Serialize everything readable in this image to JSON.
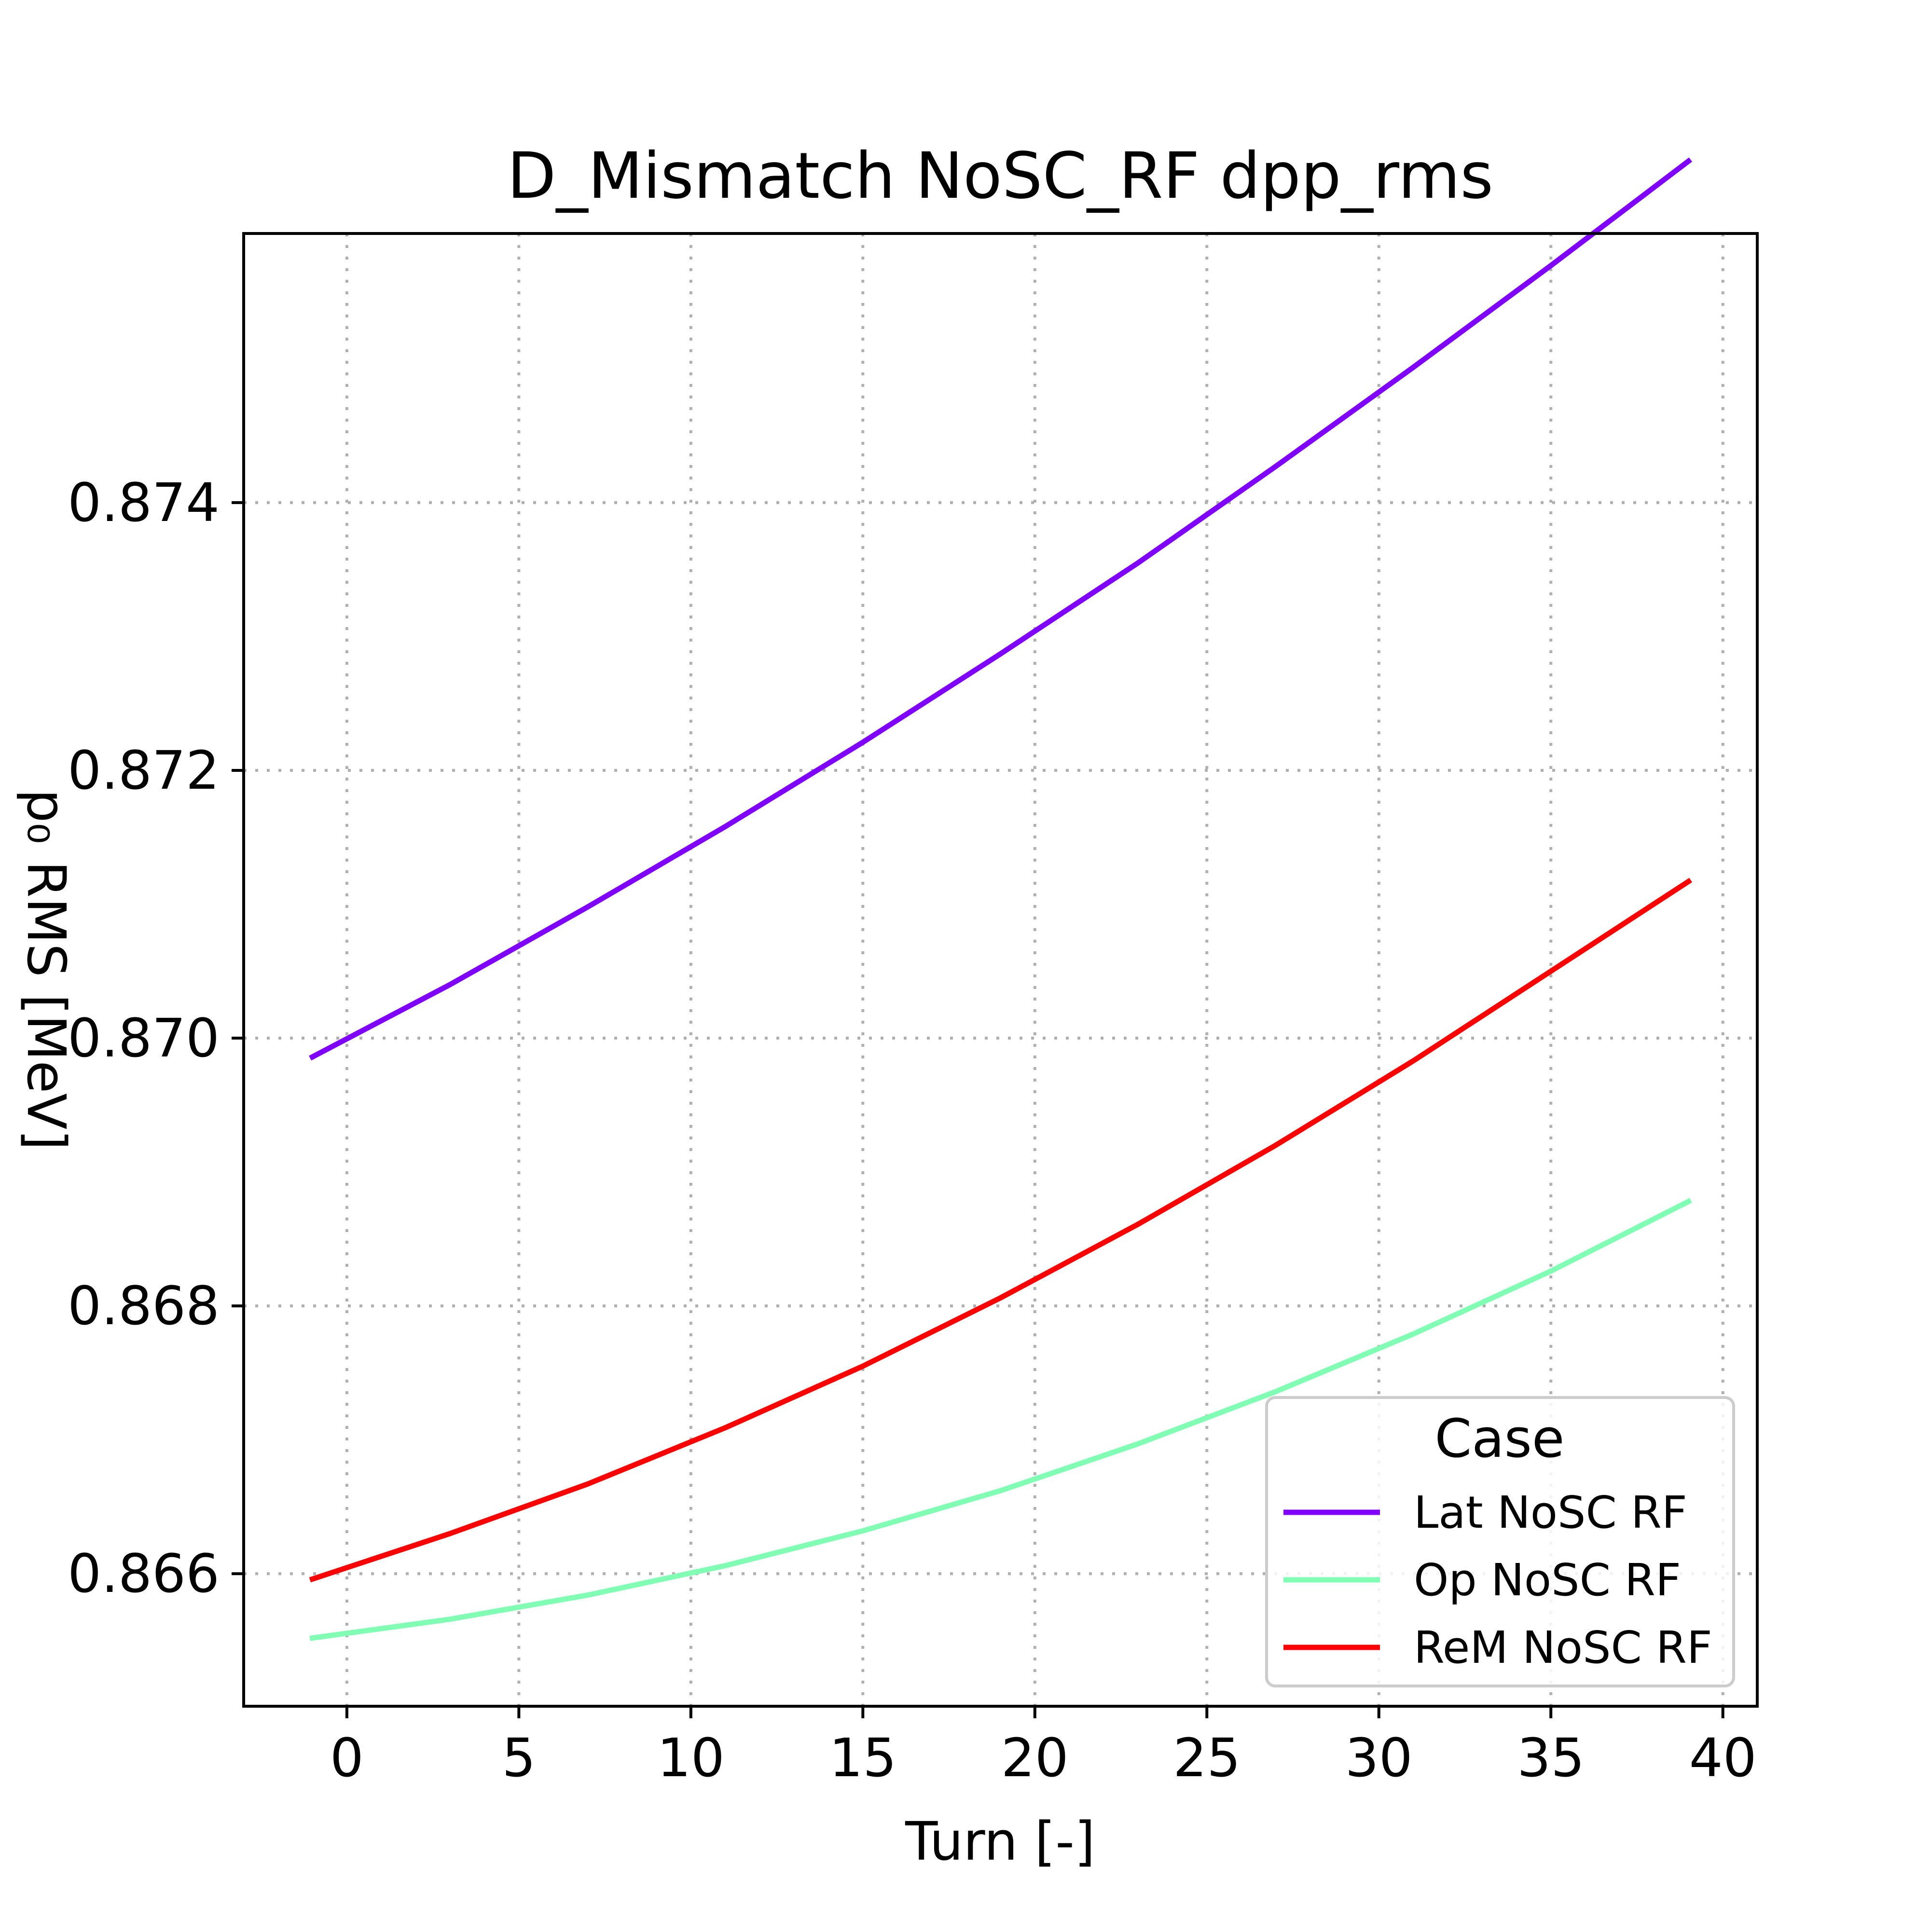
{
  "chart_data": {
    "type": "line",
    "title": "D_Mismatch NoSC_RF dpp_rms",
    "xlabel": "Turn [-]",
    "ylabel": "p₀ RMS [MeV]",
    "xlim": [
      -3,
      41
    ],
    "ylim": [
      0.86501,
      0.87601
    ],
    "xticks": [
      0,
      5,
      10,
      15,
      20,
      25,
      30,
      35,
      40
    ],
    "yticks": [
      0.866,
      0.868,
      0.87,
      0.872,
      0.874
    ],
    "ytick_labels": [
      "0.866",
      "0.868",
      "0.870",
      "0.872",
      "0.874"
    ],
    "grid": true,
    "grid_style": "dotted",
    "legend": {
      "title": "Case",
      "position": "lower right"
    },
    "x": [
      -1,
      3,
      7,
      11,
      15,
      19,
      23,
      27,
      31,
      35,
      39
    ],
    "series": [
      {
        "name": "Lat NoSC RF",
        "color": "#7f00ff",
        "values": [
          0.86986,
          0.8704,
          0.87098,
          0.87158,
          0.87221,
          0.87287,
          0.87355,
          0.87427,
          0.87501,
          0.87577,
          0.87655
        ]
      },
      {
        "name": "Op NoSC RF",
        "color": "#80ffb4",
        "values": [
          0.86552,
          0.86566,
          0.86584,
          0.86606,
          0.86632,
          0.86662,
          0.86697,
          0.86736,
          0.86779,
          0.86826,
          0.86878
        ]
      },
      {
        "name": "ReM NoSC RF",
        "color": "#ff0000",
        "values": [
          0.86596,
          0.8663,
          0.86667,
          0.86709,
          0.86755,
          0.86806,
          0.86861,
          0.8692,
          0.86983,
          0.8705,
          0.87117
        ]
      }
    ]
  }
}
